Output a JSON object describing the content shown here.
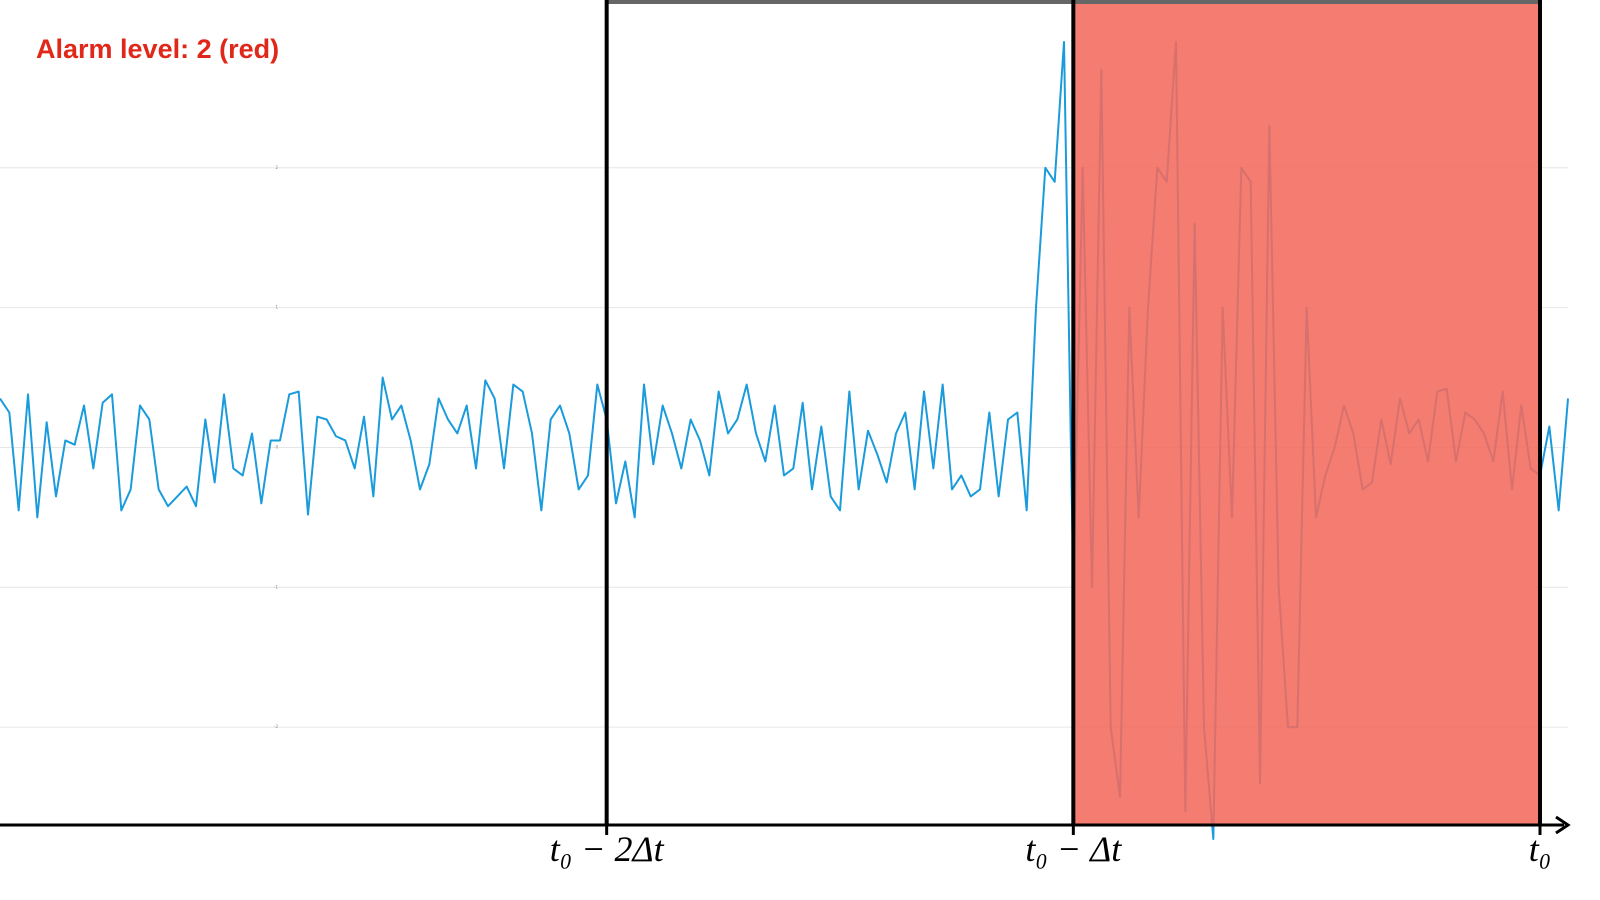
{
  "chart_data": {
    "type": "line",
    "annotation": "Alarm level: 2 (red)",
    "annotation_color": "#e0281a",
    "shade_color": "#f26a5d",
    "x": [
      0,
      1,
      2,
      3,
      4,
      5,
      6,
      7,
      8,
      9,
      10,
      11,
      12,
      13,
      14,
      15,
      16,
      17,
      18,
      19,
      20,
      21,
      22,
      23,
      24,
      25,
      26,
      27,
      28,
      29,
      30,
      31,
      32,
      33,
      34,
      35,
      36,
      37,
      38,
      39,
      40,
      41,
      42,
      43,
      44,
      45,
      46,
      47,
      48,
      49,
      50,
      51,
      52,
      53,
      54,
      55,
      56,
      57,
      58,
      59,
      60,
      61,
      62,
      63,
      64,
      65,
      66,
      67,
      68,
      69,
      70,
      71,
      72,
      73,
      74,
      75,
      76,
      77,
      78,
      79,
      80,
      81,
      82,
      83,
      84,
      85,
      86,
      87,
      88,
      89,
      90,
      91,
      92,
      93,
      94,
      95,
      96,
      97,
      98,
      99,
      100,
      101,
      102,
      103,
      104,
      105,
      106,
      107,
      108,
      109,
      110,
      111,
      112,
      113,
      114,
      115,
      116,
      117,
      118,
      119,
      120,
      121,
      122,
      123,
      124,
      125,
      126,
      127,
      128,
      129,
      130,
      131,
      132,
      133,
      134,
      135,
      136,
      137,
      138,
      139,
      140,
      141,
      142,
      143,
      144,
      145,
      146,
      147,
      148,
      149,
      150,
      151,
      152,
      153,
      154,
      155,
      156,
      157,
      158,
      159,
      160,
      161,
      162,
      163,
      164,
      165,
      166,
      167,
      168
    ],
    "series": [
      {
        "color": "#1a9bdc",
        "values": [
          0.35,
          0.25,
          -0.45,
          0.38,
          -0.5,
          0.18,
          -0.35,
          0.05,
          0.02,
          0.3,
          -0.15,
          0.32,
          0.38,
          -0.45,
          -0.3,
          0.3,
          0.2,
          -0.3,
          -0.42,
          -0.35,
          -0.28,
          -0.42,
          0.2,
          -0.25,
          0.38,
          -0.15,
          -0.2,
          0.1,
          -0.4,
          0.05,
          0.05,
          0.38,
          0.4,
          -0.48,
          0.22,
          0.2,
          0.08,
          0.05,
          -0.15,
          0.22,
          -0.35,
          0.5,
          0.2,
          0.3,
          0.05,
          -0.3,
          -0.12,
          0.35,
          0.2,
          0.1,
          0.3,
          -0.15,
          0.48,
          0.35,
          -0.15,
          0.45,
          0.4,
          0.1,
          -0.45,
          0.2,
          0.3,
          0.1,
          -0.3,
          -0.2,
          0.45,
          0.2,
          -0.4,
          -0.1,
          -0.5,
          0.45,
          -0.12,
          0.3,
          0.1,
          -0.15,
          0.2,
          0.05,
          -0.2,
          0.4,
          0.1,
          0.2,
          0.45,
          0.1,
          -0.1,
          0.3,
          -0.2,
          -0.15,
          0.32,
          -0.3,
          0.15,
          -0.35,
          -0.45,
          0.4,
          -0.3,
          0.12,
          -0.05,
          -0.25,
          0.1,
          0.25,
          -0.3,
          0.4,
          -0.15,
          0.45,
          -0.3,
          -0.2,
          -0.35,
          -0.3,
          0.25,
          -0.35,
          0.2,
          0.25,
          -0.45,
          1.0,
          2.0,
          1.9,
          2.9,
          -1.0,
          2.0,
          -1.0,
          2.7,
          -2.0,
          -2.5,
          1.0,
          -0.5,
          1.0,
          2.0,
          1.9,
          2.9,
          -2.6,
          1.6,
          -2.0,
          -2.8,
          1.0,
          -0.5,
          2.0,
          1.9,
          -2.4,
          2.3,
          -1.0,
          -2.0,
          -2.0,
          1.0,
          -0.5,
          -0.2,
          0.0,
          0.3,
          0.1,
          -0.3,
          -0.25,
          0.2,
          -0.12,
          0.35,
          0.1,
          0.2,
          -0.1,
          0.4,
          0.42,
          -0.1,
          0.25,
          0.2,
          0.1,
          -0.1,
          0.4,
          -0.3,
          0.3,
          -0.15,
          -0.2,
          0.15,
          -0.45,
          0.35
        ]
      }
    ],
    "xlim": [
      0,
      168
    ],
    "xticks": [
      {
        "value": 65,
        "label": "t₀ − 2Δt"
      },
      {
        "value": 115,
        "label": "t₀ − Δt"
      },
      {
        "value": 165,
        "label": "t₀"
      }
    ],
    "ylim": [
      -2.7,
      3.2
    ],
    "yticks": [
      -2,
      -1,
      0,
      1,
      2
    ],
    "grid": true
  }
}
